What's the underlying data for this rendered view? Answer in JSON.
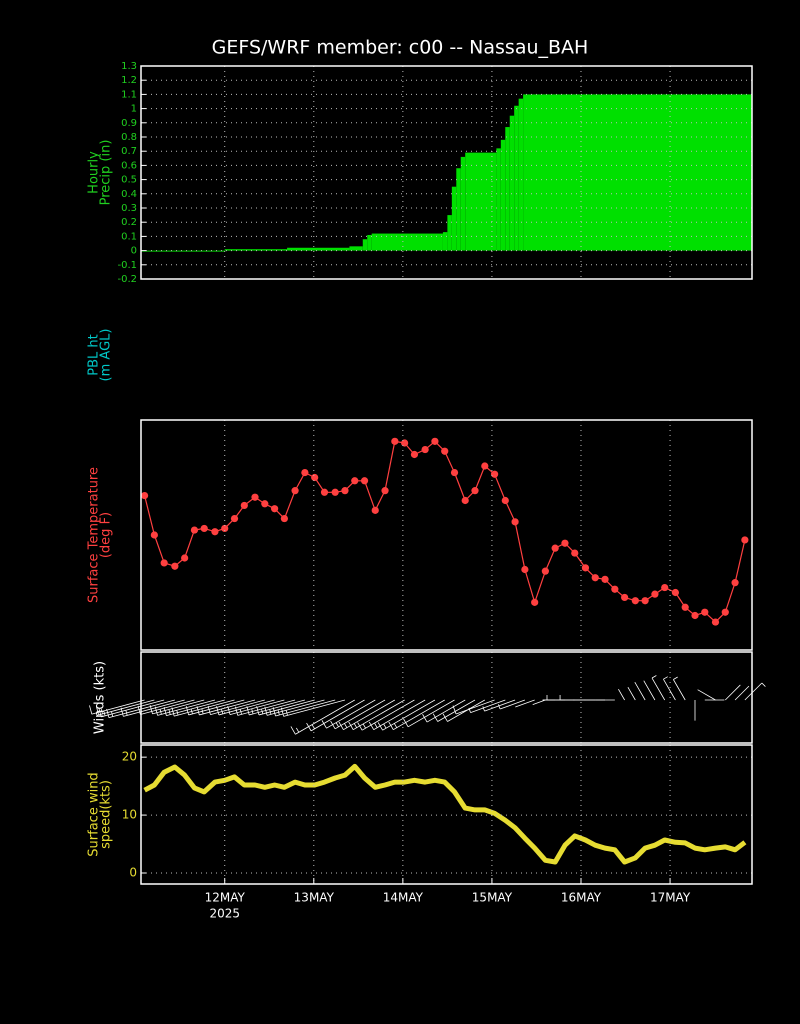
{
  "title": "GEFS/WRF member: c00 -- Nassau_BAH",
  "chart_data": [
    {
      "type": "step-area",
      "ylabel": [
        "Hourly",
        "Precip (in)"
      ],
      "color": "#00e000",
      "label_color": "#20d020",
      "xlim": [
        11.06,
        17.92
      ],
      "ylim": [
        -0.2,
        1.3
      ],
      "yticks": [
        -0.2,
        -0.1,
        0,
        0.1,
        0.2,
        0.3,
        0.4,
        0.5,
        0.6,
        0.7,
        0.8,
        0.9,
        1,
        1.1,
        1.2,
        1.3
      ],
      "grid": true,
      "x": [
        11.06,
        12.0,
        12.7,
        13.4,
        13.55,
        13.6,
        13.65,
        14.45,
        14.5,
        14.55,
        14.6,
        14.65,
        14.7,
        15.05,
        15.1,
        15.15,
        15.2,
        15.25,
        15.3,
        15.35,
        17.92
      ],
      "values": [
        0,
        0.01,
        0.02,
        0.03,
        0.08,
        0.11,
        0.12,
        0.13,
        0.25,
        0.45,
        0.58,
        0.66,
        0.69,
        0.72,
        0.78,
        0.87,
        0.95,
        1.02,
        1.07,
        1.1,
        1.1
      ]
    },
    {
      "type": "empty",
      "ylabel": [
        "PBL ht",
        "(m AGL)"
      ],
      "label_color": "#00c8c8"
    },
    {
      "type": "line-markers",
      "ylabel": [
        "Surface Temperature",
        "(deg F)"
      ],
      "color": "#ff4040",
      "label_color": "#ff4040",
      "xlim": [
        11.06,
        17.92
      ],
      "ylim": [
        72,
        86
      ],
      "grid": true,
      "x": [
        11.1,
        11.21,
        11.32,
        11.44,
        11.55,
        11.66,
        11.77,
        11.89,
        12.0,
        12.11,
        12.22,
        12.34,
        12.45,
        12.56,
        12.67,
        12.79,
        12.9,
        13.01,
        13.12,
        13.24,
        13.35,
        13.46,
        13.57,
        13.69,
        13.8,
        13.91,
        14.02,
        14.13,
        14.25,
        14.36,
        14.47,
        14.58,
        14.7,
        14.81,
        14.92,
        15.03,
        15.15,
        15.26,
        15.37,
        15.48,
        15.6,
        15.71,
        15.82,
        15.93,
        16.05,
        16.16,
        16.27,
        16.38,
        16.49,
        16.61,
        16.72,
        16.83,
        16.94,
        17.06,
        17.17,
        17.28,
        17.39,
        17.51,
        17.62,
        17.73,
        17.84
      ],
      "values": [
        81.4,
        79.0,
        77.3,
        77.1,
        77.6,
        79.3,
        79.4,
        79.2,
        79.4,
        80.0,
        80.8,
        81.3,
        80.9,
        80.6,
        80.0,
        81.7,
        82.8,
        82.5,
        81.6,
        81.6,
        81.7,
        82.3,
        82.3,
        80.5,
        81.7,
        84.7,
        84.6,
        83.9,
        84.2,
        84.7,
        84.1,
        82.8,
        81.1,
        81.7,
        83.2,
        82.7,
        81.1,
        79.8,
        76.9,
        74.9,
        76.8,
        78.2,
        78.5,
        77.9,
        77.0,
        76.4,
        76.3,
        75.7,
        75.2,
        75.0,
        75.0,
        75.4,
        75.8,
        75.5,
        74.6,
        74.1,
        74.3,
        73.7,
        74.3,
        76.1,
        78.7
      ]
    },
    {
      "type": "barbs",
      "ylabel": [
        "Winds (kts)"
      ],
      "color": "#ffffff",
      "label_color": "#ffffff",
      "xlim": [
        11.06,
        17.92
      ],
      "grid": true,
      "x": [
        11.1,
        11.21,
        11.32,
        11.44,
        11.55,
        11.66,
        11.77,
        11.89,
        12.0,
        12.11,
        12.22,
        12.34,
        12.45,
        12.56,
        12.67,
        12.79,
        12.9,
        13.01,
        13.12,
        13.24,
        13.35,
        13.46,
        13.57,
        13.69,
        13.8,
        13.91,
        14.02,
        14.13,
        14.25,
        14.36,
        14.47,
        14.58,
        14.7,
        14.81,
        14.92,
        15.03,
        15.15,
        15.26,
        15.37,
        15.48,
        15.6,
        15.71,
        15.82,
        15.93,
        16.05,
        16.16,
        16.27,
        16.38,
        16.49,
        16.61,
        16.72,
        16.83,
        16.94,
        17.06,
        17.17,
        17.28,
        17.39,
        17.51,
        17.62,
        17.73,
        17.84
      ],
      "speed": [
        14.3,
        15.2,
        17.4,
        18.3,
        16.9,
        14.7,
        14.0,
        15.7,
        16.0,
        16.6,
        15.2,
        15.2,
        14.8,
        15.2,
        14.8,
        15.7,
        15.2,
        15.2,
        15.7,
        16.4,
        16.9,
        18.4,
        16.4,
        14.8,
        15.2,
        15.7,
        15.7,
        16.0,
        15.7,
        16.0,
        15.7,
        14.0,
        11.2,
        10.9,
        10.9,
        10.3,
        9.1,
        7.8,
        6.0,
        4.3,
        2.2,
        1.9,
        4.8,
        6.4,
        5.7,
        4.8,
        4.3,
        4.0,
        1.9,
        2.6,
        4.3,
        4.8,
        5.7,
        5.3,
        5.2,
        4.3,
        4.0,
        4.3,
        4.5,
        4.0,
        5.3
      ],
      "direction": [
        255,
        255,
        255,
        255,
        255,
        255,
        255,
        255,
        255,
        255,
        255,
        255,
        255,
        255,
        255,
        255,
        255,
        255,
        255,
        255,
        255,
        240,
        240,
        240,
        240,
        240,
        240,
        240,
        240,
        240,
        240,
        240,
        240,
        240,
        240,
        250,
        250,
        250,
        250,
        250,
        250,
        270,
        270,
        270,
        270,
        270,
        270,
        270,
        330,
        330,
        330,
        330,
        330,
        330,
        330,
        180,
        90,
        300,
        45,
        45,
        45
      ]
    },
    {
      "type": "line",
      "ylabel": [
        "Surface wind",
        "speed(kts)"
      ],
      "color": "#e6dc32",
      "label_color": "#e6dc32",
      "xlim": [
        11.06,
        17.92
      ],
      "ylim": [
        -1.9,
        22.1
      ],
      "yticks": [
        0,
        10,
        20
      ],
      "grid": true,
      "xticks": [
        {
          "value": 12,
          "label": "12MAY"
        },
        {
          "value": 13,
          "label": "13MAY"
        },
        {
          "value": 14,
          "label": "14MAY"
        },
        {
          "value": 15,
          "label": "15MAY"
        },
        {
          "value": 16,
          "label": "16MAY"
        },
        {
          "value": 17,
          "label": "17MAY"
        }
      ],
      "x_sublabel": "2025",
      "x": [
        11.1,
        11.21,
        11.32,
        11.44,
        11.55,
        11.66,
        11.77,
        11.89,
        12.0,
        12.11,
        12.22,
        12.34,
        12.45,
        12.56,
        12.67,
        12.79,
        12.9,
        13.01,
        13.12,
        13.24,
        13.35,
        13.46,
        13.57,
        13.69,
        13.8,
        13.91,
        14.02,
        14.13,
        14.25,
        14.36,
        14.47,
        14.58,
        14.7,
        14.81,
        14.92,
        15.03,
        15.15,
        15.26,
        15.37,
        15.48,
        15.6,
        15.71,
        15.82,
        15.93,
        16.05,
        16.16,
        16.27,
        16.38,
        16.49,
        16.61,
        16.72,
        16.83,
        16.94,
        17.06,
        17.17,
        17.28,
        17.39,
        17.51,
        17.62,
        17.73,
        17.84
      ],
      "values": [
        14.3,
        15.2,
        17.4,
        18.3,
        16.9,
        14.7,
        14.0,
        15.7,
        16.0,
        16.6,
        15.2,
        15.2,
        14.8,
        15.2,
        14.8,
        15.7,
        15.2,
        15.2,
        15.7,
        16.4,
        16.9,
        18.4,
        16.4,
        14.8,
        15.2,
        15.7,
        15.7,
        16.0,
        15.7,
        16.0,
        15.7,
        14.0,
        11.2,
        10.9,
        10.9,
        10.3,
        9.1,
        7.8,
        6.0,
        4.3,
        2.2,
        1.9,
        4.8,
        6.4,
        5.7,
        4.8,
        4.3,
        4.0,
        1.9,
        2.6,
        4.3,
        4.8,
        5.7,
        5.3,
        5.2,
        4.3,
        4.0,
        4.3,
        4.5,
        4.0,
        5.3
      ]
    }
  ]
}
